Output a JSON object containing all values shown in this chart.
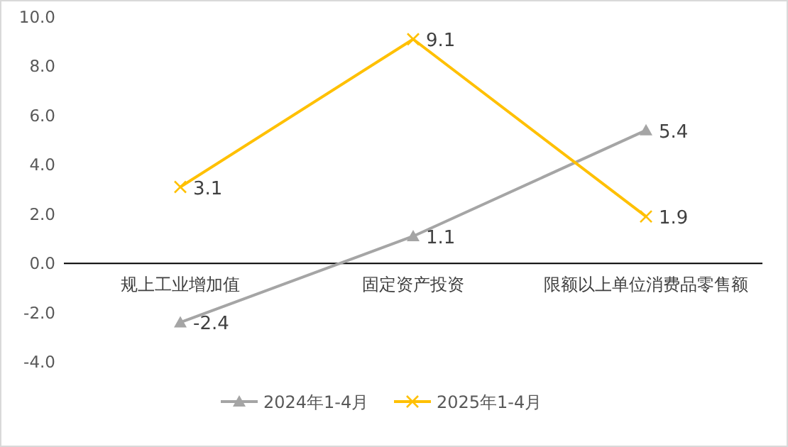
{
  "chart_data": {
    "type": "line",
    "categories": [
      "规上工业增加值",
      "固定资产投资",
      "限额以上单位消费品零售额"
    ],
    "series": [
      {
        "name": "2024年1-4月",
        "color": "#a5a5a5",
        "marker": "triangle",
        "values": [
          -2.4,
          1.1,
          5.4
        ]
      },
      {
        "name": "2025年1-4月",
        "color": "#ffc000",
        "marker": "cross",
        "values": [
          3.1,
          9.1,
          1.9
        ]
      }
    ],
    "ylim": [
      -4,
      10
    ],
    "yticks": [
      {
        "value": -4,
        "label": "-4.0"
      },
      {
        "value": -2,
        "label": "-2.0"
      },
      {
        "value": 0,
        "label": "0.0"
      },
      {
        "value": 2,
        "label": "2.0"
      },
      {
        "value": 4,
        "label": "4.0"
      },
      {
        "value": 6,
        "label": "6.0"
      },
      {
        "value": 8,
        "label": "8.0"
      },
      {
        "value": 10,
        "label": "10.0"
      }
    ],
    "data_labels": true,
    "legend": "bottom",
    "grid": false
  }
}
